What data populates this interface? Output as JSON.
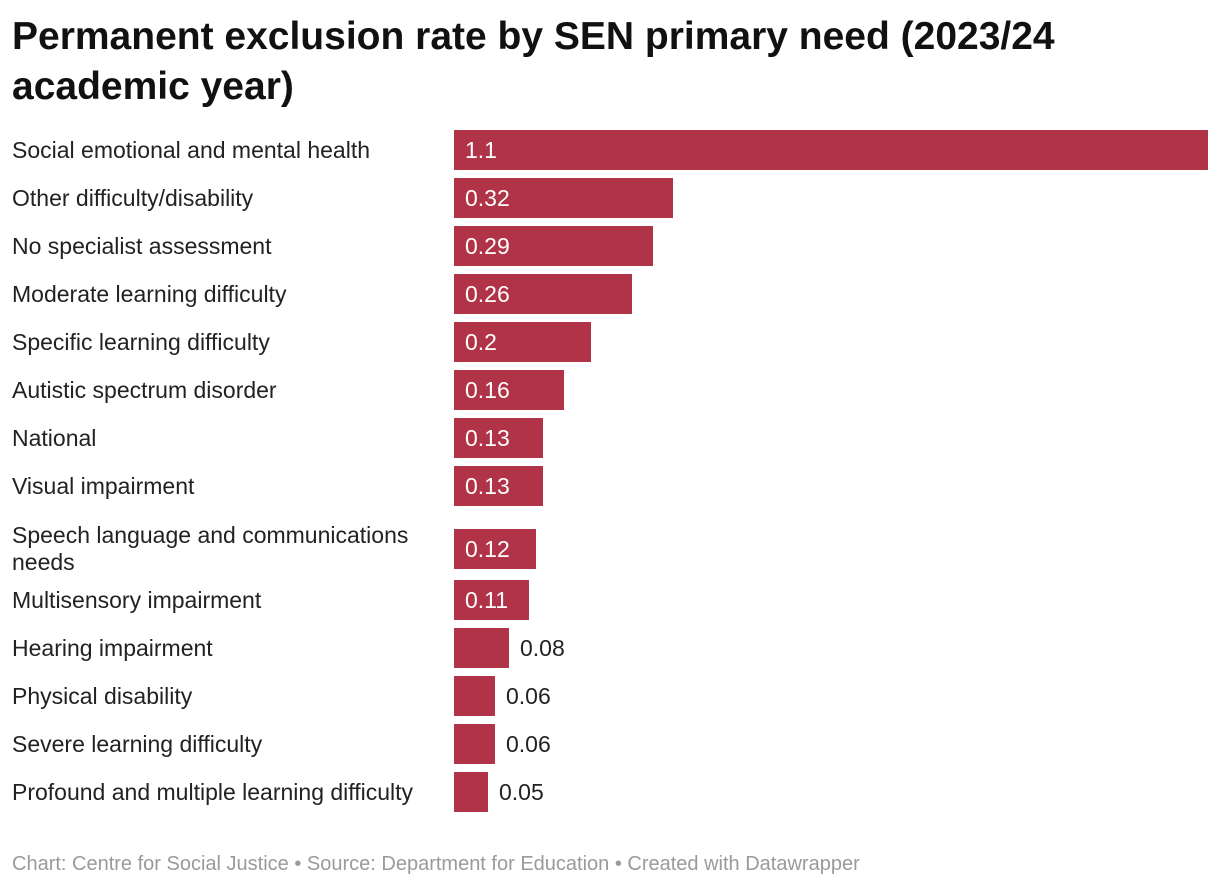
{
  "chart_data": {
    "type": "bar",
    "orientation": "horizontal",
    "title": "Permanent exclusion rate by SEN primary need (2023/24 academic year)",
    "categories": [
      "Social emotional and mental health",
      "Other difficulty/disability",
      "No specialist assessment",
      "Moderate learning difficulty",
      "Specific learning difficulty",
      "Autistic spectrum disorder",
      "National",
      "Visual impairment",
      "Speech language and communications needs",
      "Multisensory impairment",
      "Hearing impairment",
      "Physical disability",
      "Severe learning difficulty",
      "Profound and multiple learning difficulty"
    ],
    "values": [
      1.1,
      0.32,
      0.29,
      0.26,
      0.2,
      0.16,
      0.13,
      0.13,
      0.12,
      0.11,
      0.08,
      0.06,
      0.06,
      0.05
    ],
    "value_labels": [
      "1.1",
      "0.32",
      "0.29",
      "0.26",
      "0.2",
      "0.16",
      "0.13",
      "0.13",
      "0.12",
      "0.11",
      "0.08",
      "0.06",
      "0.06",
      "0.05"
    ],
    "xlim": [
      0,
      1.1
    ],
    "grid": false,
    "bar_color": "#b03347"
  },
  "footer": "Chart: Centre for Social Justice • Source: Department for Education • Created with Datawrapper"
}
